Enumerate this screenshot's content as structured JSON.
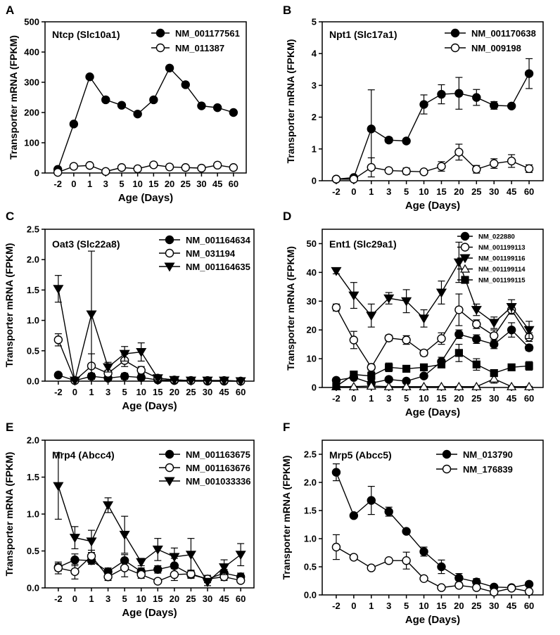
{
  "chart_data": [
    {
      "type": "line",
      "panel": "A",
      "title": "Ntcp (Slc10a1)",
      "xlabel": "Age (Days)",
      "ylabel": "Transporter mRNA (FPKM)",
      "categories": [
        "-2",
        "0",
        "1",
        "3",
        "5",
        "10",
        "15",
        "20",
        "25",
        "30",
        "45",
        "60"
      ],
      "ylim": [
        0,
        500
      ],
      "yticks": [
        "0",
        "100",
        "200",
        "300",
        "400",
        "500"
      ],
      "series": [
        {
          "name": "NM_001177561",
          "marker": "filled-circle",
          "values": [
            12,
            162,
            318,
            242,
            224,
            195,
            242,
            347,
            292,
            222,
            216,
            200
          ],
          "errors": [
            0,
            0,
            0,
            0,
            0,
            0,
            0,
            0,
            0,
            0,
            0,
            0
          ]
        },
        {
          "name": "NM_011387",
          "marker": "open-circle",
          "values": [
            2,
            22,
            25,
            5,
            18,
            14,
            27,
            20,
            18,
            16,
            26,
            18
          ],
          "errors": [
            0,
            0,
            0,
            0,
            0,
            0,
            0,
            0,
            0,
            0,
            0,
            0
          ]
        }
      ]
    },
    {
      "type": "line",
      "panel": "B",
      "title": "Npt1 (Slc17a1)",
      "xlabel": "Age (Days)",
      "ylabel": "Transporter mRNA (FPKM)",
      "categories": [
        "-2",
        "0",
        "1",
        "3",
        "5",
        "10",
        "15",
        "20",
        "25",
        "30",
        "45",
        "60"
      ],
      "ylim": [
        0,
        5
      ],
      "yticks": [
        "0",
        "1",
        "2",
        "3",
        "4",
        "5"
      ],
      "series": [
        {
          "name": "NM_001170638",
          "marker": "filled-circle",
          "values": [
            0.05,
            0.1,
            1.63,
            1.28,
            1.25,
            2.4,
            2.72,
            2.75,
            2.62,
            2.37,
            2.35,
            3.37
          ],
          "errors": [
            0.03,
            0.05,
            1.23,
            0.08,
            0.05,
            0.3,
            0.3,
            0.5,
            0.25,
            0.12,
            0.05,
            0.47
          ]
        },
        {
          "name": "NM_009198",
          "marker": "open-circle",
          "values": [
            0.05,
            0.05,
            0.42,
            0.32,
            0.3,
            0.28,
            0.45,
            0.9,
            0.36,
            0.54,
            0.62,
            0.38
          ],
          "errors": [
            0.02,
            0.03,
            0.3,
            0.05,
            0.1,
            0.05,
            0.15,
            0.25,
            0.12,
            0.15,
            0.2,
            0.12
          ]
        }
      ]
    },
    {
      "type": "line",
      "panel": "C",
      "title": "Oat3 (Slc22a8)",
      "xlabel": "Age (Days)",
      "ylabel": "Transporter mRNA (FPKM)",
      "categories": [
        "-2",
        "0",
        "1",
        "3",
        "5",
        "10",
        "15",
        "20",
        "25",
        "30",
        "45",
        "60"
      ],
      "ylim": [
        0,
        2.5
      ],
      "yticks": [
        "0.0",
        "0.5",
        "1.0",
        "1.5",
        "2.0",
        "2.5"
      ],
      "series": [
        {
          "name": "NM_001164634",
          "marker": "filled-circle",
          "values": [
            0.1,
            0.01,
            0.08,
            0.05,
            0.08,
            0.06,
            0.02,
            0.01,
            0.01,
            0.0,
            0.0,
            0.0
          ],
          "errors": [
            0.02,
            0.01,
            0.05,
            0.03,
            0.05,
            0.03,
            0.01,
            0.0,
            0.0,
            0.0,
            0.0,
            0.0
          ]
        },
        {
          "name": "NM_031194",
          "marker": "open-circle",
          "values": [
            0.68,
            0.01,
            0.25,
            0.13,
            0.34,
            0.18,
            0.05,
            0.02,
            0.01,
            0.01,
            0.01,
            0.0
          ],
          "errors": [
            0.1,
            0.01,
            0.2,
            0.05,
            0.1,
            0.06,
            0.02,
            0.01,
            0.0,
            0.0,
            0.0,
            0.0
          ]
        },
        {
          "name": "NM_001164635",
          "marker": "filled-triangle-down",
          "values": [
            1.52,
            0.01,
            1.1,
            0.23,
            0.45,
            0.48,
            0.05,
            0.02,
            0.01,
            0.01,
            0.01,
            0.0
          ],
          "errors": [
            0.22,
            0.01,
            1.04,
            0.08,
            0.12,
            0.15,
            0.03,
            0.01,
            0.0,
            0.0,
            0.0,
            0.0
          ]
        }
      ]
    },
    {
      "type": "line",
      "panel": "D",
      "title": "Ent1 (Slc29a1)",
      "xlabel": "Age (Days)",
      "ylabel": "Transporter mRNA (FPKM)",
      "categories": [
        "-2",
        "0",
        "1",
        "3",
        "5",
        "10",
        "15",
        "20",
        "25",
        "30",
        "45",
        "60"
      ],
      "ylim": [
        0,
        55
      ],
      "yticks": [
        "0",
        "10",
        "20",
        "30",
        "40",
        "50"
      ],
      "series": [
        {
          "name": "NM_022880",
          "marker": "filled-circle",
          "values": [
            2.5,
            3.5,
            1.5,
            2.8,
            2.2,
            4.0,
            9.0,
            18.5,
            16.8,
            15.0,
            20.0,
            13.8
          ],
          "errors": [
            0.3,
            0.5,
            0.5,
            0.5,
            0.5,
            0.8,
            1.5,
            1.5,
            1.5,
            1.5,
            2.5,
            1.0
          ]
        },
        {
          "name": "NM_001199113",
          "marker": "open-circle",
          "values": [
            27.8,
            16.5,
            7.0,
            17.2,
            16.5,
            12.0,
            17.0,
            27.0,
            22.0,
            18.0,
            27.0,
            17.5
          ],
          "errors": [
            1.2,
            3.0,
            1.0,
            1.0,
            1.5,
            1.0,
            2.0,
            5.5,
            1.5,
            2.0,
            1.5,
            1.5
          ]
        },
        {
          "name": "NM_001199116",
          "marker": "filled-triangle-down",
          "values": [
            40.5,
            32.0,
            25.0,
            31.0,
            30.0,
            24.0,
            33.0,
            43.5,
            27.0,
            22.5,
            28.0,
            20.0
          ],
          "errors": [
            1.0,
            4.5,
            4.0,
            2.0,
            4.0,
            3.0,
            4.0,
            7.0,
            2.0,
            2.0,
            2.5,
            3.0
          ]
        },
        {
          "name": "NM_001199114",
          "marker": "open-triangle-up",
          "values": [
            0.3,
            0.3,
            0.5,
            0.3,
            0.3,
            0.3,
            0.3,
            0.3,
            0.3,
            3.0,
            0.3,
            0.3
          ],
          "errors": [
            0.1,
            0.1,
            0.1,
            0.1,
            0.1,
            0.1,
            0.1,
            0.1,
            0.1,
            1.5,
            0.1,
            0.1
          ]
        },
        {
          "name": "NM_001199115",
          "marker": "filled-square",
          "values": [
            0.4,
            4.5,
            4.0,
            7.0,
            6.5,
            7.0,
            8.0,
            12.0,
            8.0,
            5.0,
            7.0,
            7.5
          ],
          "errors": [
            0.2,
            1.0,
            1.5,
            1.5,
            0.5,
            1.0,
            1.0,
            3.0,
            2.0,
            0.5,
            0.5,
            1.5
          ]
        }
      ]
    },
    {
      "type": "line",
      "panel": "E",
      "title": "Mrp4 (Abcc4)",
      "xlabel": "Age (Days)",
      "ylabel": "Transporter mRNA (FPKM)",
      "categories": [
        "-2",
        "0",
        "1",
        "3",
        "5",
        "10",
        "15",
        "20",
        "25",
        "30",
        "45",
        "60"
      ],
      "ylim": [
        0,
        2.0
      ],
      "yticks": [
        "0.0",
        "0.5",
        "1.0",
        "1.5",
        "2.0"
      ],
      "series": [
        {
          "name": "NM_001163675",
          "marker": "filled-circle",
          "values": [
            0.28,
            0.38,
            0.37,
            0.22,
            0.37,
            0.22,
            0.25,
            0.3,
            0.18,
            0.12,
            0.2,
            0.15
          ],
          "errors": [
            0.05,
            0.08,
            0.05,
            0.05,
            0.08,
            0.05,
            0.05,
            0.1,
            0.05,
            0.05,
            0.05,
            0.05
          ]
        },
        {
          "name": "NM_001163676",
          "marker": "open-circle",
          "values": [
            0.27,
            0.22,
            0.43,
            0.15,
            0.27,
            0.18,
            0.09,
            0.18,
            0.19,
            0.12,
            0.15,
            0.1
          ],
          "errors": [
            0.08,
            0.1,
            0.08,
            0.05,
            0.12,
            0.05,
            0.03,
            0.08,
            0.05,
            0.03,
            0.05,
            0.03
          ]
        },
        {
          "name": "NM_001033336",
          "marker": "filled-triangle-down",
          "values": [
            1.38,
            0.68,
            0.63,
            1.12,
            0.72,
            0.35,
            0.52,
            0.42,
            0.45,
            0.08,
            0.28,
            0.45
          ],
          "errors": [
            0.45,
            0.15,
            0.15,
            0.1,
            0.25,
            0.05,
            0.15,
            0.12,
            0.22,
            0.05,
            0.1,
            0.15
          ]
        }
      ]
    },
    {
      "type": "line",
      "panel": "F",
      "title": "Mrp5 (Abcc5)",
      "xlabel": "Age (Days)",
      "ylabel": "Transporter mRNA (FPKM)",
      "categories": [
        "-2",
        "0",
        "1",
        "3",
        "5",
        "10",
        "15",
        "20",
        "25",
        "30",
        "45",
        "60"
      ],
      "ylim": [
        0,
        2.75
      ],
      "yticks": [
        "0.0",
        "0.5",
        "1.0",
        "1.5",
        "2.0",
        "2.5"
      ],
      "series": [
        {
          "name": "NM_013790",
          "marker": "filled-circle",
          "values": [
            2.18,
            1.41,
            1.68,
            1.48,
            1.13,
            0.77,
            0.5,
            0.3,
            0.23,
            0.14,
            0.13,
            0.19
          ],
          "errors": [
            0.15,
            0.02,
            0.25,
            0.08,
            0.02,
            0.08,
            0.12,
            0.08,
            0.06,
            0.03,
            0.02,
            0.03
          ]
        },
        {
          "name": "NM_176839",
          "marker": "open-circle",
          "values": [
            0.85,
            0.67,
            0.48,
            0.61,
            0.61,
            0.29,
            0.13,
            0.17,
            0.13,
            0.05,
            0.12,
            0.06
          ],
          "errors": [
            0.22,
            0.04,
            0.03,
            0.02,
            0.15,
            0.02,
            0.02,
            0.04,
            0.03,
            0.01,
            0.02,
            0.02
          ]
        }
      ]
    }
  ]
}
